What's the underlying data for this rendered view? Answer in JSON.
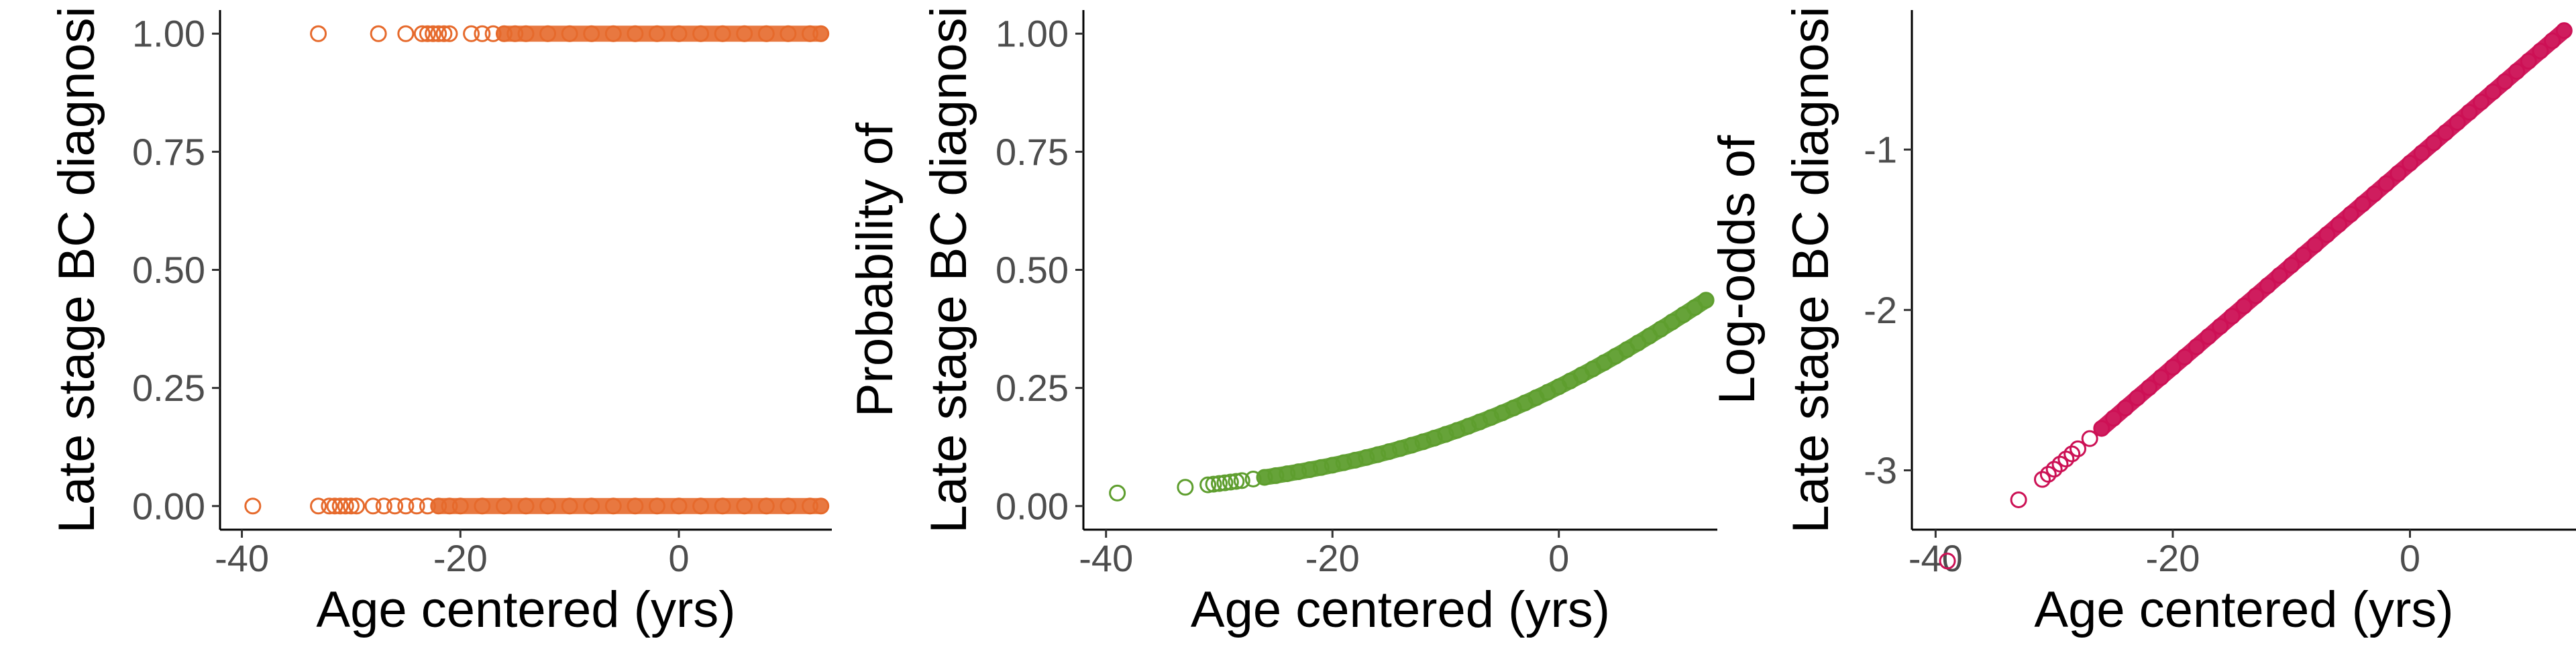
{
  "chart_data": [
    {
      "type": "scatter",
      "title": "",
      "xlabel": "Age centered (yrs)",
      "ylabel_lines": [
        "Late stage BC diagnosi"
      ],
      "xlim": [
        -42,
        14
      ],
      "ylim": [
        -0.05,
        1.05
      ],
      "x_ticks": [
        -40,
        -20,
        0
      ],
      "x_tick_labels": [
        "-40",
        "-20",
        "0"
      ],
      "y_ticks": [
        0.0,
        0.25,
        0.5,
        0.75,
        1.0
      ],
      "y_tick_labels": [
        "0.00",
        "0.25",
        "0.50",
        "0.75",
        "1.00"
      ],
      "marker": "open-circle",
      "color": "#E66A2C",
      "grid": false,
      "series": [
        {
          "x": [
            -39.0,
            -33.0,
            -32.0,
            -31.5,
            -31.0,
            -30.5,
            -30.0,
            -29.5,
            -28.0,
            -27.0,
            -26.0,
            -25.0,
            -24.0,
            -23.0,
            -22.0,
            -21.0,
            -20.0,
            -18.0,
            -16.0,
            -14.0,
            -12.0,
            -10.0,
            -8.0,
            -6.0,
            -4.0,
            -2.0,
            0.0,
            2.0,
            4.0,
            6.0,
            8.0,
            10.0,
            12.0,
            13.0
          ],
          "y": [
            0,
            0,
            0,
            0,
            0,
            0,
            0,
            0,
            0,
            0,
            0,
            0,
            0,
            0,
            0,
            0,
            0,
            0,
            0,
            0,
            0,
            0,
            0,
            0,
            0,
            0,
            0,
            0,
            0,
            0,
            0,
            0,
            0,
            0
          ]
        },
        {
          "x": [
            -33.0,
            -27.5,
            -25.0,
            -23.5,
            -23.0,
            -22.5,
            -22.0,
            -21.5,
            -21.0,
            -19.0,
            -18.0,
            -17.0,
            -16.0,
            -15.0,
            -14.0,
            -12.0,
            -10.0,
            -8.0,
            -6.0,
            -4.0,
            -2.0,
            0.0,
            2.0,
            4.0,
            6.0,
            8.0,
            10.0,
            12.0,
            13.0
          ],
          "y": [
            1,
            1,
            1,
            1,
            1,
            1,
            1,
            1,
            1,
            1,
            1,
            1,
            1,
            1,
            1,
            1,
            1,
            1,
            1,
            1,
            1,
            1,
            1,
            1,
            1,
            1,
            1,
            1,
            1
          ]
        }
      ]
    },
    {
      "type": "scatter",
      "title": "",
      "xlabel": "Age centered (yrs)",
      "ylabel_lines": [
        "Probability of",
        "Late stage BC diagnosi"
      ],
      "xlim": [
        -42,
        14
      ],
      "ylim": [
        -0.05,
        1.05
      ],
      "x_ticks": [
        -40,
        -20,
        0
      ],
      "x_tick_labels": [
        "-40",
        "-20",
        "0"
      ],
      "y_ticks": [
        0.0,
        0.25,
        0.5,
        0.75,
        1.0
      ],
      "y_tick_labels": [
        "0.00",
        "0.25",
        "0.50",
        "0.75",
        "1.00"
      ],
      "marker": "open-circle",
      "color": "#5E9E2E",
      "grid": false,
      "curve": {
        "form": "logistic",
        "intercept": -1.085,
        "slope": 0.0636
      },
      "x": [
        -39.0,
        -33.0,
        -31.0,
        -30.5,
        -30.0,
        -29.5,
        -29.0,
        -28.5,
        -28.0,
        -27.0,
        -26.0,
        -25.0,
        -24.0,
        -23.0,
        -22.0,
        -21.0,
        -20.0,
        -19.0,
        -18.0,
        -17.0,
        -16.0,
        -15.0,
        -14.0,
        -13.0,
        -12.0,
        -11.0,
        -10.0,
        -9.0,
        -8.0,
        -7.0,
        -6.0,
        -5.0,
        -4.0,
        -3.0,
        -2.0,
        -1.0,
        0.0,
        1.0,
        2.0,
        3.0,
        4.0,
        5.0,
        6.0,
        7.0,
        8.0,
        9.0,
        10.0,
        11.0,
        12.0,
        13.0
      ]
    },
    {
      "type": "scatter",
      "title": "",
      "xlabel": "Age centered (yrs)",
      "ylabel_lines": [
        "Log-odds of",
        "Late stage BC diagnosi"
      ],
      "xlim": [
        -42,
        14
      ],
      "ylim": [
        -3.37,
        -0.13
      ],
      "x_ticks": [
        -40,
        -20,
        0
      ],
      "x_tick_labels": [
        "-40",
        "-20",
        "0"
      ],
      "y_ticks": [
        -3,
        -2,
        -1
      ],
      "y_tick_labels": [
        "-3",
        "-2",
        "-1"
      ],
      "marker": "open-circle",
      "color": "#CC1155",
      "grid": false,
      "curve": {
        "form": "linear",
        "intercept": -1.085,
        "slope": 0.0636
      },
      "x": [
        -39.0,
        -33.0,
        -31.0,
        -30.5,
        -30.0,
        -29.5,
        -29.0,
        -28.5,
        -28.0,
        -27.0,
        -26.0,
        -25.0,
        -24.0,
        -23.0,
        -22.0,
        -21.0,
        -20.0,
        -19.0,
        -18.0,
        -17.0,
        -16.0,
        -15.0,
        -14.0,
        -13.0,
        -12.0,
        -11.0,
        -10.0,
        -9.0,
        -8.0,
        -7.0,
        -6.0,
        -5.0,
        -4.0,
        -3.0,
        -2.0,
        -1.0,
        0.0,
        1.0,
        2.0,
        3.0,
        4.0,
        5.0,
        6.0,
        7.0,
        8.0,
        9.0,
        10.0,
        11.0,
        12.0,
        13.0
      ]
    }
  ]
}
